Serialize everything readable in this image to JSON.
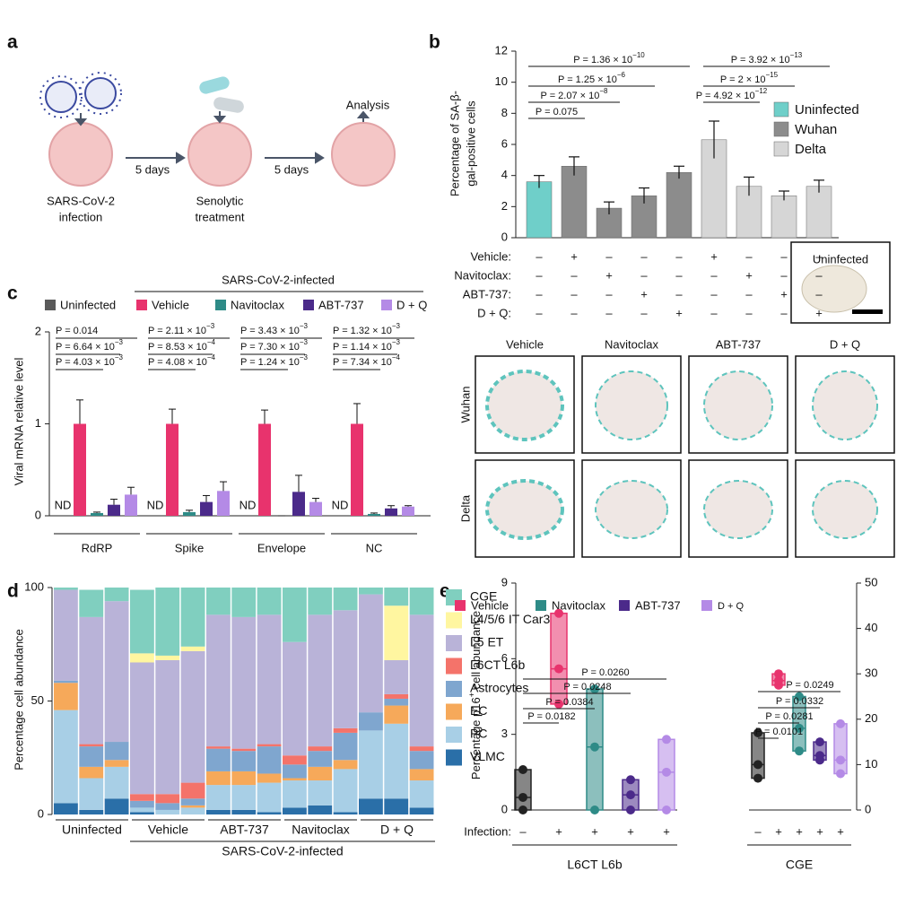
{
  "panel_labels": [
    "a",
    "b",
    "c",
    "d",
    "e"
  ],
  "schematic": {
    "steps": [
      [
        "SARS-CoV-2",
        "infection"
      ],
      [
        "Senolytic",
        "treatment"
      ],
      [
        "Analysis"
      ]
    ],
    "intervals": [
      "5 days",
      "5 days"
    ]
  },
  "images": {
    "title": "Uninfected",
    "columns": [
      "Vehicle",
      "Navitoclax",
      "ABT-737",
      "D + Q"
    ],
    "rows": [
      "Wuhan",
      "Delta"
    ]
  },
  "chart_data": [
    {
      "type": "bar",
      "ylabel": [
        "Percentage of SA-β-",
        "gal-positive cells"
      ],
      "ylim": [
        0,
        12
      ],
      "yticks": [
        0,
        2,
        4,
        6,
        8,
        10,
        12
      ],
      "values": [
        3.6,
        4.6,
        1.9,
        2.7,
        4.2,
        6.3,
        3.3,
        2.7,
        3.3
      ],
      "errors": [
        0.4,
        0.6,
        0.4,
        0.5,
        0.4,
        1.2,
        0.6,
        0.3,
        0.4
      ],
      "colors": [
        "#6fcfc9",
        "#8c8c8c",
        "#8c8c8c",
        "#8c8c8c",
        "#8c8c8c",
        "#d6d6d6",
        "#d6d6d6",
        "#d6d6d6",
        "#d6d6d6"
      ],
      "legend": [
        {
          "name": "Uninfected",
          "color": "#6fcfc9"
        },
        {
          "name": "Wuhan",
          "color": "#8c8c8c"
        },
        {
          "name": "Delta",
          "color": "#d6d6d6"
        }
      ],
      "treatments": [
        {
          "label": "Vehicle:",
          "signs": [
            "–",
            "+",
            "–",
            "–",
            "–",
            "+",
            "–",
            "–",
            "–"
          ]
        },
        {
          "label": "Navitoclax:",
          "signs": [
            "–",
            "–",
            "+",
            "–",
            "–",
            "–",
            "+",
            "–",
            "–"
          ]
        },
        {
          "label": "ABT-737:",
          "signs": [
            "–",
            "–",
            "–",
            "+",
            "–",
            "–",
            "–",
            "+",
            "–"
          ]
        },
        {
          "label": "D + Q:",
          "signs": [
            "–",
            "–",
            "–",
            "–",
            "+",
            "–",
            "–",
            "–",
            "+"
          ]
        }
      ],
      "comparisons": [
        {
          "text": "P = 0.075"
        },
        {
          "text": "P = 2.07 × 10",
          "exponent": "−8"
        },
        {
          "text": "P = 1.25 × 10",
          "exponent": "−6"
        },
        {
          "text": "P = 1.36 × 10",
          "exponent": "−10"
        },
        {
          "text": "P = 4.92 × 10",
          "exponent": "−12"
        },
        {
          "text": "P = 2 × 10",
          "exponent": "−15"
        },
        {
          "text": "P = 3.92 × 10",
          "exponent": "−13"
        }
      ]
    },
    {
      "type": "grouped_bar",
      "ylabel": "Viral mRNA relative level",
      "ylim": [
        0,
        2
      ],
      "yticks": [
        0,
        1,
        2
      ],
      "groups": [
        "RdRP",
        "Spike",
        "Envelope",
        "NC"
      ],
      "infected_label": "SARS-CoV-2-infected",
      "series": [
        {
          "name": "Uninfected",
          "color": "#5a5a5a",
          "values": [
            null,
            null,
            null,
            null
          ],
          "value_labels": [
            "ND",
            "ND",
            "ND",
            "ND"
          ]
        },
        {
          "name": "Vehicle",
          "color": "#e8336d",
          "values": [
            1,
            1,
            1,
            1
          ],
          "errors": [
            0.26,
            0.16,
            0.15,
            0.22
          ]
        },
        {
          "name": "Navitoclax",
          "color": "#2e8b87",
          "values": [
            0.03,
            0.04,
            0,
            0.02
          ],
          "errors": [
            0.01,
            0.02,
            0,
            0.01
          ]
        },
        {
          "name": "ABT-737",
          "color": "#4b2a8a",
          "values": [
            0.12,
            0.15,
            0.26,
            0.08
          ],
          "errors": [
            0.06,
            0.07,
            0.18,
            0.03
          ]
        },
        {
          "name": "D + Q",
          "color": "#b48ae6",
          "values": [
            0.23,
            0.27,
            0.15,
            0.1
          ],
          "errors": [
            0.08,
            0.1,
            0.04,
            0.01
          ]
        }
      ],
      "comparisons": [
        [
          {
            "text": "P = 0.014"
          },
          {
            "text": "P = 6.64 × 10",
            "exponent": "−3"
          },
          {
            "text": "P = 4.03 × 10",
            "exponent": "−3"
          }
        ],
        [
          {
            "text": "P = 2.11 × 10",
            "exponent": "−3"
          },
          {
            "text": "P = 8.53 × 10",
            "exponent": "−4"
          },
          {
            "text": "P = 4.08 × 10",
            "exponent": "−4"
          }
        ],
        [
          {
            "text": "P = 3.43 × 10",
            "exponent": "−3"
          },
          {
            "text": "P = 7.30 × 10",
            "exponent": "−3"
          },
          {
            "text": "P = 1.24 × 10",
            "exponent": "−3"
          }
        ],
        [
          {
            "text": "P = 1.32 × 10",
            "exponent": "−3"
          },
          {
            "text": "P = 1.14 × 10",
            "exponent": "−3"
          },
          {
            "text": "P = 7.34 × 10",
            "exponent": "−4"
          }
        ]
      ]
    },
    {
      "type": "stacked_bar",
      "ylabel": "Percentage cell abundance",
      "ylim": [
        0,
        100
      ],
      "yticks": [
        0,
        50,
        100
      ],
      "groups": [
        "Uninfected",
        "Vehicle",
        "ABT-737",
        "Navitoclax",
        "D + Q"
      ],
      "infected_label": "SARS-CoV-2-infected",
      "series": [
        {
          "name": "CGE",
          "color": "#80cfbf",
          "values": [
            1,
            12,
            6,
            28,
            30,
            26,
            12,
            13,
            12,
            24,
            12,
            10,
            3,
            8,
            12
          ]
        },
        {
          "name": "L4/5/6 IT Car3",
          "color": "#fff6a0",
          "values": [
            0,
            0,
            0,
            4,
            2,
            2,
            0,
            0,
            0,
            0,
            0,
            0,
            0,
            24,
            0
          ]
        },
        {
          "name": "L5 ET",
          "color": "#b9b3d8",
          "values": [
            40,
            56,
            62,
            58,
            59,
            58,
            58,
            58,
            57,
            50,
            58,
            52,
            52,
            15,
            58
          ]
        },
        {
          "name": "L6CT L6b",
          "color": "#f4736a",
          "values": [
            0,
            1,
            0,
            3,
            4,
            7,
            1,
            1,
            1,
            4,
            2,
            2,
            0,
            2,
            2
          ]
        },
        {
          "name": "Astrocytes",
          "color": "#7fa6cf",
          "values": [
            1,
            9,
            8,
            3,
            3,
            3,
            10,
            9,
            12,
            6,
            7,
            12,
            8,
            3,
            8
          ]
        },
        {
          "name": "EC",
          "color": "#f6a95a",
          "values": [
            12,
            5,
            3,
            0,
            0,
            1,
            6,
            6,
            4,
            1,
            6,
            4,
            0,
            8,
            5
          ]
        },
        {
          "name": "PC",
          "color": "#a8cfe6",
          "values": [
            41,
            14,
            14,
            2,
            2,
            3,
            11,
            11,
            13,
            12,
            11,
            19,
            30,
            33,
            12
          ]
        },
        {
          "name": "VLMC",
          "color": "#2a6fa8",
          "values": [
            5,
            2,
            7,
            1,
            0,
            0,
            2,
            2,
            1,
            3,
            4,
            1,
            7,
            7,
            3
          ]
        }
      ]
    },
    {
      "type": "floating_bar",
      "ylabel": {
        "text": "Percentage p16",
        "sup": "+",
        "after": " cell abundance"
      },
      "ylim": [
        0,
        9
      ],
      "yticks": [
        0,
        3,
        6,
        9
      ],
      "y2lim": [
        0,
        50
      ],
      "y2ticks": [
        0,
        10,
        20,
        30,
        40,
        50
      ],
      "row_label": "Infection:",
      "uninfected_color": "#222222",
      "series": [
        {
          "name": "Vehicle",
          "color": "#e8336d"
        },
        {
          "name": "Navitoclax",
          "color": "#2e8b87"
        },
        {
          "name": "ABT-737",
          "color": "#4b2a8a"
        },
        {
          "name": "D + Q",
          "color": "#b48ae6"
        }
      ],
      "groups": [
        {
          "label": "L6CT L6b",
          "axis": "y",
          "signs": [
            "–",
            "+",
            "+",
            "+",
            "+"
          ],
          "points": [
            [
              0,
              0.5,
              1.6
            ],
            [
              4.2,
              5.6,
              7.8
            ],
            [
              0,
              2.5,
              4.8
            ],
            [
              0,
              0.6,
              1.2
            ],
            [
              0,
              1.5,
              2.8
            ]
          ],
          "comparisons": [
            "P = 0.0182",
            "P = 0.0384",
            "P = 0.0248",
            "P = 0.0260"
          ]
        },
        {
          "label": "CGE",
          "axis": "y2",
          "signs": [
            "–",
            "+",
            "+",
            "+",
            "+"
          ],
          "points": [
            [
              7,
              10,
              17
            ],
            [
              27.5,
              28.5,
              30
            ],
            [
              13,
              18,
              25
            ],
            [
              11,
              12,
              15
            ],
            [
              8,
              11,
              19
            ]
          ],
          "comparisons": [
            "P = 0.0101",
            "P = 0.0281",
            "P = 0.0332",
            "P = 0.0249"
          ]
        }
      ]
    }
  ]
}
